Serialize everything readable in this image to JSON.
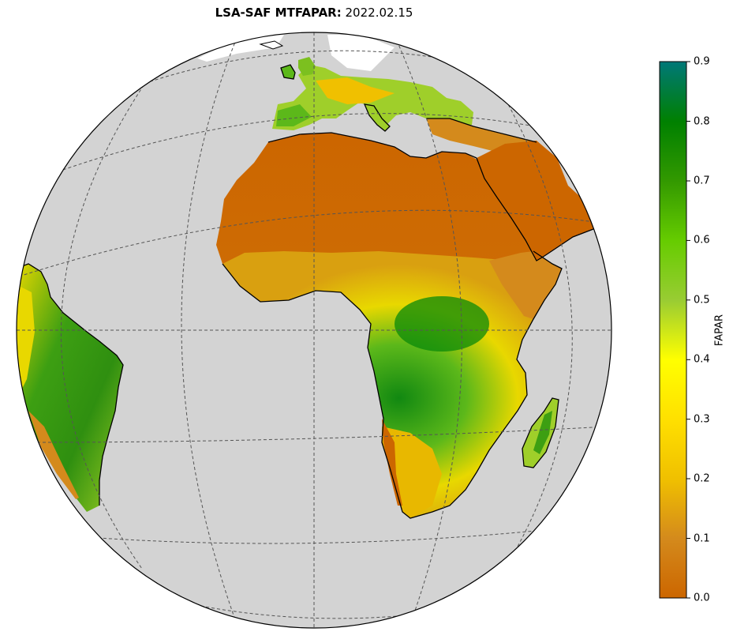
{
  "title": {
    "product": "LSA-SAF MTFAPAR",
    "separator": ":",
    "date": "2022.02.15"
  },
  "colorbar": {
    "label": "FAPAR",
    "ticks": [
      "0.0",
      "0.1",
      "0.2",
      "0.3",
      "0.4",
      "0.5",
      "0.6",
      "0.7",
      "0.8",
      "0.9"
    ],
    "range": [
      0.0,
      0.9
    ],
    "stops": [
      {
        "value": 0.0,
        "color": "#cc6600"
      },
      {
        "value": 0.1,
        "color": "#d48a1c"
      },
      {
        "value": 0.2,
        "color": "#f0c000"
      },
      {
        "value": 0.3,
        "color": "#ffe000"
      },
      {
        "value": 0.4,
        "color": "#ffff00"
      },
      {
        "value": 0.5,
        "color": "#99cc33"
      },
      {
        "value": 0.6,
        "color": "#66cc00"
      },
      {
        "value": 0.7,
        "color": "#339900"
      },
      {
        "value": 0.8,
        "color": "#008000"
      },
      {
        "value": 0.9,
        "color": "#007878"
      }
    ]
  },
  "map": {
    "projection": "orthographic",
    "ocean_color": "#d3d3d3",
    "gridlines": "dashed",
    "coastline_color": "#000000"
  }
}
